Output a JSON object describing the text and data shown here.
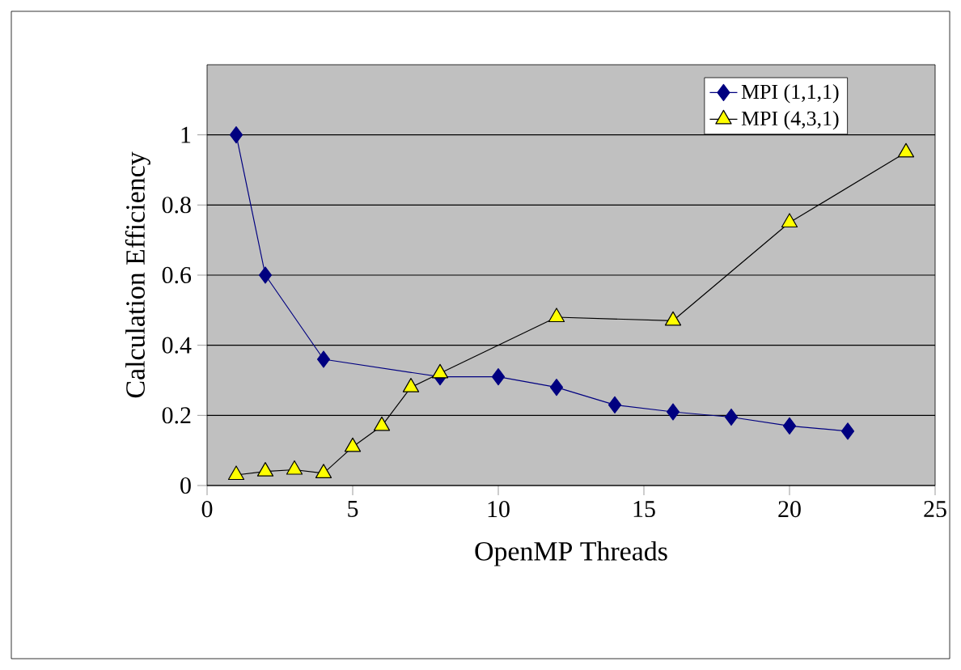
{
  "chart_data": {
    "type": "line",
    "xlabel": "OpenMP Threads",
    "ylabel": "Calculation Efficiency",
    "xlim": [
      0,
      25
    ],
    "xticks": [
      0,
      5,
      10,
      15,
      20,
      25
    ],
    "ylim": [
      0,
      1.2
    ],
    "yticks": [
      0,
      0.2,
      0.4,
      0.6,
      0.8,
      1
    ],
    "grid": "y",
    "legend": "top right",
    "series": [
      {
        "name": "MPI (1,1,1)",
        "color": "#000080",
        "marker": "diamond",
        "x": [
          1,
          2,
          4,
          8,
          10,
          12,
          14,
          16,
          18,
          20,
          22
        ],
        "values": [
          1.0,
          0.6,
          0.36,
          0.31,
          0.31,
          0.28,
          0.23,
          0.21,
          0.195,
          0.17,
          0.155
        ]
      },
      {
        "name": "MPI (4,3,1)",
        "color": "#ffff00",
        "marker": "triangle",
        "x": [
          1,
          2,
          3,
          4,
          5,
          6,
          7,
          8,
          12,
          16,
          20,
          24
        ],
        "values": [
          0.03,
          0.04,
          0.045,
          0.035,
          0.11,
          0.17,
          0.28,
          0.32,
          0.48,
          0.47,
          0.75,
          0.95
        ]
      }
    ]
  }
}
